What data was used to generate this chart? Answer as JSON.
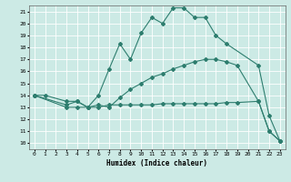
{
  "xlabel": "Humidex (Indice chaleur)",
  "bg_color": "#cceae5",
  "grid_color": "#ffffff",
  "line_color": "#2d7d6e",
  "xlim": [
    -0.5,
    23.5
  ],
  "ylim": [
    9.5,
    21.5
  ],
  "xticks": [
    0,
    1,
    2,
    3,
    4,
    5,
    6,
    7,
    8,
    9,
    10,
    11,
    12,
    13,
    14,
    15,
    16,
    17,
    18,
    19,
    20,
    21,
    22,
    23
  ],
  "yticks": [
    10,
    11,
    12,
    13,
    14,
    15,
    16,
    17,
    18,
    19,
    20,
    21
  ],
  "line1_x": [
    0,
    1,
    3,
    4,
    5,
    6,
    7,
    8,
    9,
    10,
    11,
    12,
    13,
    14,
    15,
    16,
    17,
    18,
    21,
    22,
    23
  ],
  "line1_y": [
    14,
    14,
    13.5,
    13.5,
    13.0,
    14.0,
    16.2,
    18.3,
    17.0,
    19.2,
    20.5,
    20.0,
    21.3,
    21.3,
    20.5,
    20.5,
    19.0,
    18.3,
    16.5,
    12.3,
    10.2
  ],
  "line2_x": [
    0,
    3,
    4,
    5,
    6,
    7,
    8,
    9,
    10,
    11,
    12,
    13,
    14,
    15,
    16,
    17,
    18,
    19,
    21,
    22,
    23
  ],
  "line2_y": [
    14,
    13.2,
    13.5,
    13.0,
    13.2,
    13.0,
    13.8,
    14.5,
    15.0,
    15.5,
    15.8,
    16.2,
    16.5,
    16.8,
    17.0,
    17.0,
    16.8,
    16.5,
    13.5,
    11.0,
    10.2
  ],
  "line3_x": [
    0,
    3,
    4,
    5,
    6,
    7,
    8,
    9,
    10,
    11,
    12,
    13,
    14,
    15,
    16,
    17,
    18,
    19,
    21,
    22,
    23
  ],
  "line3_y": [
    14,
    13.0,
    13.0,
    13.0,
    13.0,
    13.2,
    13.2,
    13.2,
    13.2,
    13.2,
    13.3,
    13.3,
    13.3,
    13.3,
    13.3,
    13.3,
    13.4,
    13.4,
    13.5,
    11.0,
    10.2
  ]
}
